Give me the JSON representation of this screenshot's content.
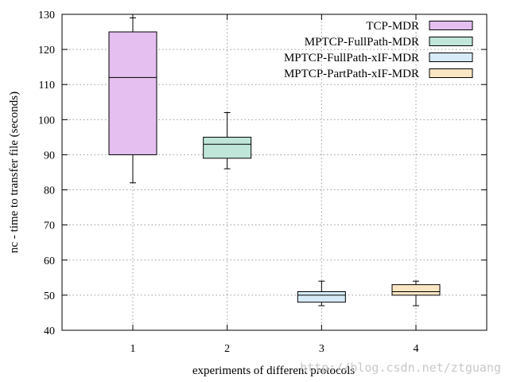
{
  "chart_data": {
    "type": "boxplot",
    "title": "",
    "xlabel": "experiments of different protocols",
    "ylabel": "nc - time to transfer file (seconds)",
    "xlim": [
      0.25,
      4.75
    ],
    "ylim": [
      40,
      130
    ],
    "yticks": [
      40,
      50,
      60,
      70,
      80,
      90,
      100,
      110,
      120,
      130
    ],
    "xticks": [
      1,
      2,
      3,
      4
    ],
    "grid": true,
    "legend_position": "top-right",
    "series": [
      {
        "name": "TCP-MDR",
        "x": 1,
        "color": "#e4bff0",
        "min": 82,
        "q1": 90,
        "median": 112,
        "q3": 125,
        "max": 129
      },
      {
        "name": "MPTCP-FullPath-MDR",
        "x": 2,
        "color": "#bfe6d8",
        "min": 86,
        "q1": 89,
        "median": 93,
        "q3": 95,
        "max": 102
      },
      {
        "name": "MPTCP-FullPath-xIF-MDR",
        "x": 3,
        "color": "#d6ebf7",
        "min": 47,
        "q1": 48,
        "median": 50,
        "q3": 51,
        "max": 54
      },
      {
        "name": "MPTCP-PartPath-xIF-MDR",
        "x": 4,
        "color": "#fbe6c3",
        "min": 47,
        "q1": 50,
        "median": 51,
        "q3": 53,
        "max": 54
      }
    ]
  },
  "watermark": "http://blog.csdn.net/ztguang"
}
